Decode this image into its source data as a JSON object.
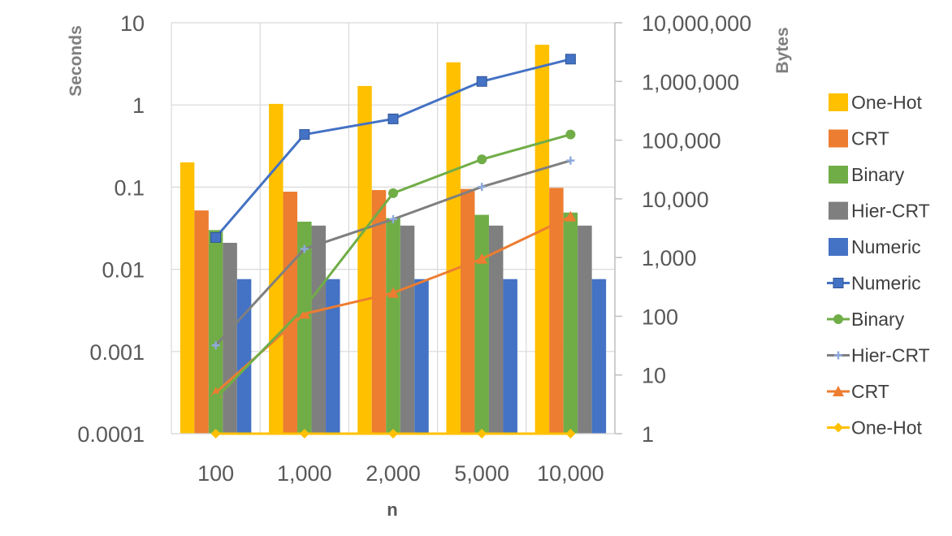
{
  "chart_data": {
    "type": "bar",
    "categories": [
      "100",
      "1,000",
      "2,000",
      "5,000",
      "10,000"
    ],
    "xlabel": "n",
    "ylabel": "Seconds",
    "y2label": "Bytes",
    "y_scale": "log",
    "y2_scale": "log",
    "ylim": [
      0.0001,
      10
    ],
    "y2lim": [
      1,
      10000000
    ],
    "y_ticks": [
      "0.0001",
      "0.001",
      "0.01",
      "0.1",
      "1",
      "10"
    ],
    "y2_ticks": [
      "1",
      "10",
      "100",
      "1,000",
      "10,000",
      "100,000",
      "1,000,000",
      "10,000,000"
    ],
    "grid": true,
    "legend_position": "right",
    "bar_series": [
      {
        "name": "One-Hot",
        "color": "#FFC000",
        "values": [
          0.2,
          1.03,
          1.7,
          3.3,
          5.4
        ]
      },
      {
        "name": "CRT",
        "color": "#ED7D31",
        "values": [
          0.052,
          0.088,
          0.092,
          0.095,
          0.098
        ]
      },
      {
        "name": "Binary",
        "color": "#70AD47",
        "values": [
          0.03,
          0.038,
          0.042,
          0.046,
          0.049
        ]
      },
      {
        "name": "Hier-CRT",
        "color": "#7F7F7F",
        "values": [
          0.021,
          0.034,
          0.034,
          0.034,
          0.034
        ]
      },
      {
        "name": "Numeric",
        "color": "#4472C4",
        "values": [
          0.0076,
          0.0076,
          0.0076,
          0.0076,
          0.0076
        ]
      }
    ],
    "line_series": [
      {
        "name": "Numeric",
        "color": "#4472C4",
        "marker": "square",
        "values": [
          2200,
          125000,
          230000,
          1000000,
          2400000
        ]
      },
      {
        "name": "Binary",
        "color": "#70AD47",
        "marker": "circle",
        "values": [
          4,
          140,
          12500,
          47000,
          125000
        ]
      },
      {
        "name": "Hier-CRT",
        "color": "#7F7F7F",
        "marker": "plus",
        "values": [
          32,
          1400,
          4500,
          16000,
          45000
        ]
      },
      {
        "name": "CRT",
        "color": "#ED7D31",
        "marker": "triangle",
        "values": [
          5,
          110,
          250,
          950,
          5000
        ]
      },
      {
        "name": "One-Hot",
        "color": "#FFC000",
        "marker": "diamond",
        "values": [
          1,
          1,
          1,
          1,
          1
        ]
      }
    ]
  }
}
